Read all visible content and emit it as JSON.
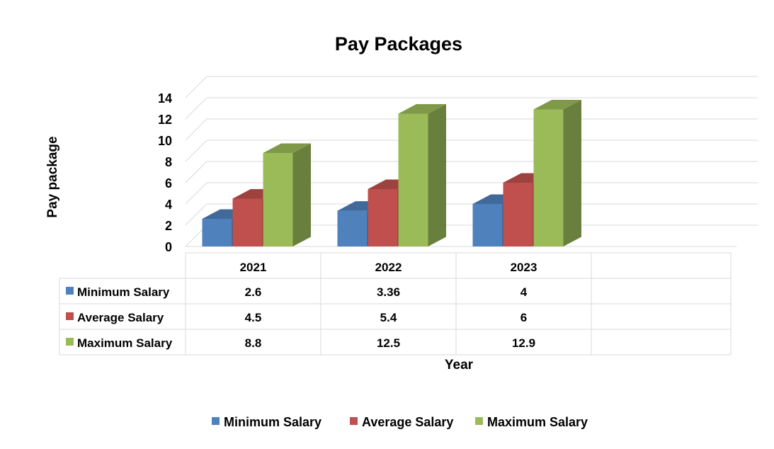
{
  "chart_data": {
    "type": "bar",
    "title": "Pay Packages",
    "xlabel": "Year",
    "ylabel": "Pay package",
    "categories": [
      "2021",
      "2022",
      "2023"
    ],
    "series": [
      {
        "name": "Minimum Salary",
        "values": [
          2.6,
          3.36,
          4
        ],
        "value_labels": [
          "2.6",
          "3.36",
          "4"
        ],
        "color": "#4F81BD"
      },
      {
        "name": "Average Salary",
        "values": [
          4.5,
          5.4,
          6
        ],
        "value_labels": [
          "4.5",
          "5.4",
          "6"
        ],
        "color": "#C0504D"
      },
      {
        "name": "Maximum Salary",
        "values": [
          8.8,
          12.5,
          12.9
        ],
        "value_labels": [
          "8.8",
          "12.5",
          "12.9"
        ],
        "color": "#9BBB59"
      }
    ],
    "ylim": [
      0,
      14
    ],
    "yticks": [
      "0",
      "2",
      "4",
      "6",
      "8",
      "10",
      "12",
      "14"
    ],
    "grid": true,
    "legend": "bottom",
    "data_table": true,
    "style": "3d-clustered-column"
  }
}
